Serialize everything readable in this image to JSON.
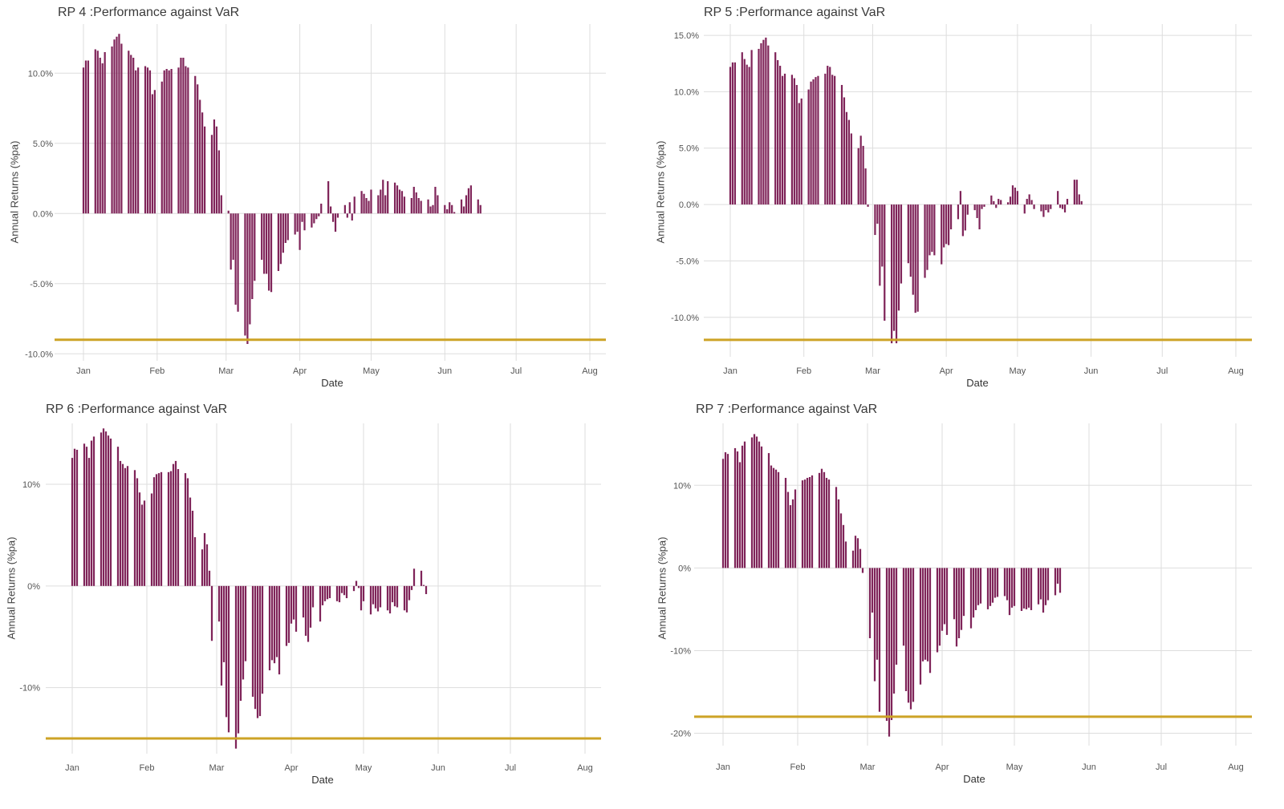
{
  "colors": {
    "bar": "#7f2459",
    "var_line": "#cda326",
    "grid": "#dddddd"
  },
  "chart_data": [
    {
      "type": "bar",
      "title": "RP  4 :Performance against VaR",
      "xlabel": "Date",
      "ylabel": "Annual Returns (%pa)",
      "x_ticks": [
        "Jan",
        "Feb",
        "Mar",
        "Apr",
        "May",
        "Jun",
        "Jul",
        "Aug"
      ],
      "y_ticks": [
        "10.0%",
        "5.0%",
        "0.0%",
        "-5.0%",
        "-10.0%"
      ],
      "y_tick_values": [
        10,
        5,
        0,
        -5,
        -10
      ],
      "ylim": [
        -10.5,
        13.5
      ],
      "xlim": [
        "2020-01-01",
        "2020-08-01"
      ],
      "var_threshold": -9.0,
      "grid": true,
      "x_start": "2020-01-01",
      "values": [
        10.4,
        10.9,
        10.9,
        11.7,
        11.6,
        11.1,
        10.7,
        11.5,
        11.9,
        12.4,
        12.6,
        12.8,
        12.1,
        11.6,
        11.3,
        11.1,
        10.2,
        10.4,
        10.5,
        10.4,
        10.2,
        8.5,
        8.8,
        9.4,
        10.2,
        10.3,
        10.2,
        10.3,
        10.4,
        11.1,
        11.1,
        10.5,
        10.4,
        9.8,
        9.2,
        8.1,
        7.2,
        6.2,
        5.6,
        6.7,
        6.2,
        4.5,
        1.3,
        0.2,
        -4.0,
        -3.3,
        -6.5,
        -7.0,
        -8.7,
        -9.3,
        -7.9,
        -6.1,
        -4.8,
        -3.3,
        -4.3,
        -4.3,
        -5.5,
        -5.6,
        -4.1,
        -3.6,
        -2.8,
        -2.1,
        -1.9,
        -1.5,
        -1.3,
        -2.6,
        -0.6,
        -1.2,
        -1.0,
        -0.7,
        -0.4,
        -0.2,
        0.7,
        2.3,
        0.5,
        -0.6,
        -1.3,
        -0.3,
        0.6,
        -0.3,
        0.8,
        -0.5,
        1.2,
        1.6,
        1.4,
        1.1,
        0.9,
        1.7,
        1.3,
        1.7,
        2.4,
        1.3,
        2.3,
        2.2,
        2.0,
        1.7,
        1.6,
        1.2,
        1.1,
        1.9,
        1.5,
        1.1,
        0.9,
        1.0,
        0.5,
        0.6,
        1.9,
        1.3,
        0.6,
        0.3,
        0.8,
        0.6,
        0.1,
        1.0,
        0.5,
        1.3,
        1.8,
        2.0,
        1.0,
        0.6
      ]
    },
    {
      "type": "bar",
      "title": "RP  5 :Performance against VaR",
      "xlabel": "Date",
      "ylabel": "Annual Returns (%pa)",
      "x_ticks": [
        "Jan",
        "Feb",
        "Mar",
        "Apr",
        "May",
        "Jun",
        "Jul",
        "Aug"
      ],
      "y_ticks": [
        "15.0%",
        "10.0%",
        "5.0%",
        "0.0%",
        "-5.0%",
        "-10.0%"
      ],
      "y_tick_values": [
        15,
        10,
        5,
        0,
        -5,
        -10
      ],
      "ylim": [
        -13.5,
        16.0
      ],
      "xlim": [
        "2020-01-01",
        "2020-08-01"
      ],
      "var_threshold": -12.0,
      "grid": true,
      "x_start": "2020-01-01",
      "values": [
        12.2,
        12.6,
        12.6,
        13.5,
        12.9,
        12.4,
        12.2,
        13.7,
        13.8,
        14.3,
        14.6,
        14.8,
        14.1,
        13.5,
        12.8,
        12.3,
        11.4,
        11.6,
        11.5,
        11.2,
        10.6,
        9.0,
        9.4,
        10.2,
        10.9,
        11.1,
        11.3,
        11.4,
        11.6,
        12.3,
        12.2,
        11.5,
        11.4,
        10.6,
        9.5,
        8.2,
        7.5,
        6.3,
        5.0,
        6.1,
        5.2,
        3.2,
        -0.2,
        -2.7,
        -1.7,
        -7.2,
        -5.5,
        -10.3,
        -12.3,
        -11.2,
        -12.3,
        -9.4,
        -7.0,
        -5.2,
        -6.4,
        -8.0,
        -9.6,
        -9.5,
        -6.5,
        -5.8,
        -4.5,
        -4.2,
        -4.5,
        -5.3,
        -3.8,
        -3.5,
        -3.6,
        -2.2,
        -1.3,
        1.2,
        -2.8,
        -2.3,
        -0.9,
        -0.5,
        -1.2,
        -2.2,
        -0.4,
        -0.2,
        0.8,
        0.3,
        -0.3,
        0.5,
        0.4,
        0.2,
        0.7,
        1.7,
        1.5,
        1.2,
        -0.8,
        0.5,
        0.9,
        0.4,
        -0.4,
        -0.6,
        -1.1,
        -0.5,
        -0.7,
        -0.4,
        1.2,
        -0.3,
        -0.4,
        -0.7,
        0.5,
        2.2,
        2.2,
        0.9,
        0.3
      ]
    },
    {
      "type": "bar",
      "title": "RP  6 :Performance against VaR",
      "xlabel": "Date",
      "ylabel": "Annual Returns (%pa)",
      "x_ticks": [
        "Jan",
        "Feb",
        "Mar",
        "Apr",
        "May",
        "Jun",
        "Jul",
        "Aug"
      ],
      "y_ticks": [
        "10%",
        "0%",
        "-10%"
      ],
      "y_tick_values": [
        10,
        0,
        -10
      ],
      "ylim": [
        -16.5,
        16.0
      ],
      "xlim": [
        "2020-01-01",
        "2020-08-01"
      ],
      "var_threshold": -15.0,
      "grid": true,
      "x_start": "2020-01-01",
      "values": [
        12.6,
        13.5,
        13.4,
        14.0,
        13.7,
        12.6,
        14.3,
        14.7,
        15.1,
        15.5,
        15.2,
        14.8,
        14.5,
        13.7,
        12.3,
        12.0,
        11.6,
        11.8,
        11.4,
        10.6,
        9.2,
        8.0,
        8.4,
        9.1,
        10.7,
        11.0,
        11.1,
        11.2,
        11.2,
        11.3,
        12.0,
        12.3,
        11.5,
        11.1,
        10.6,
        8.7,
        7.4,
        4.8,
        3.6,
        5.2,
        4.1,
        1.5,
        -5.4,
        -3.5,
        -9.8,
        -7.5,
        -12.9,
        -14.4,
        -16.0,
        -14.5,
        -11.3,
        -9.2,
        -7.4,
        -10.9,
        -12.1,
        -13.0,
        -12.8,
        -10.6,
        -8.3,
        -7.3,
        -7.6,
        -7.0,
        -8.7,
        -5.9,
        -5.6,
        -3.7,
        -3.3,
        -4.5,
        -3.1,
        -4.9,
        -5.5,
        -4.1,
        -2.1,
        -3.5,
        -1.9,
        -1.5,
        -1.3,
        -1.2,
        -1.5,
        -1.6,
        -0.7,
        -0.9,
        -1.2,
        -0.5,
        0.5,
        -0.2,
        -2.4,
        -1.5,
        -2.8,
        -1.8,
        -2.2,
        -2.5,
        -2.1,
        -2.4,
        -2.7,
        -1.6,
        -2.0,
        -2.1,
        -2.4,
        -2.6,
        -1.4,
        -0.4,
        1.7,
        1.5,
        0.1,
        -0.8
      ]
    },
    {
      "type": "bar",
      "title": "RP  7 :Performance against VaR",
      "xlabel": "Date",
      "ylabel": "Annual Returns (%pa)",
      "x_ticks": [
        "Jan",
        "Feb",
        "Mar",
        "Apr",
        "May",
        "Jun",
        "Jul",
        "Aug"
      ],
      "y_ticks": [
        "10%",
        "0%",
        "-10%",
        "-20%"
      ],
      "y_tick_values": [
        10,
        0,
        -10,
        -20
      ],
      "ylim": [
        -21.5,
        17.5
      ],
      "xlim": [
        "2020-01-01",
        "2020-08-01"
      ],
      "var_threshold": -18.0,
      "grid": true,
      "x_start": "2020-01-01",
      "values": [
        13.2,
        14.0,
        13.8,
        14.5,
        14.1,
        12.8,
        14.8,
        15.3,
        15.8,
        16.2,
        15.9,
        15.3,
        14.7,
        13.9,
        12.4,
        12.1,
        11.9,
        11.6,
        10.9,
        9.2,
        7.6,
        8.3,
        9.5,
        10.6,
        10.7,
        10.9,
        11.0,
        11.2,
        11.5,
        12.0,
        11.6,
        10.9,
        10.7,
        9.8,
        8.3,
        6.6,
        5.2,
        3.2,
        2.1,
        3.9,
        3.6,
        2.3,
        -0.6,
        -8.5,
        -5.4,
        -13.7,
        -11.1,
        -17.4,
        -18.5,
        -20.4,
        -18.4,
        -15.2,
        -11.7,
        -9.4,
        -14.9,
        -16.3,
        -17.1,
        -16.2,
        -14.1,
        -11.3,
        -11.1,
        -11.3,
        -12.7,
        -10.2,
        -9.4,
        -7.6,
        -6.8,
        -8.1,
        -6.2,
        -9.5,
        -8.5,
        -7.5,
        -5.8,
        -7.3,
        -6.0,
        -5.1,
        -4.5,
        -4.3,
        -5.0,
        -4.6,
        -4.2,
        -3.6,
        -3.5,
        -3.4,
        -3.9,
        -5.7,
        -4.8,
        -4.6,
        -5.2,
        -4.9,
        -5.0,
        -4.8,
        -5.1,
        -4.4,
        -3.8,
        -5.4,
        -4.5,
        -3.9,
        -3.3,
        -1.9,
        -3.0
      ]
    }
  ]
}
